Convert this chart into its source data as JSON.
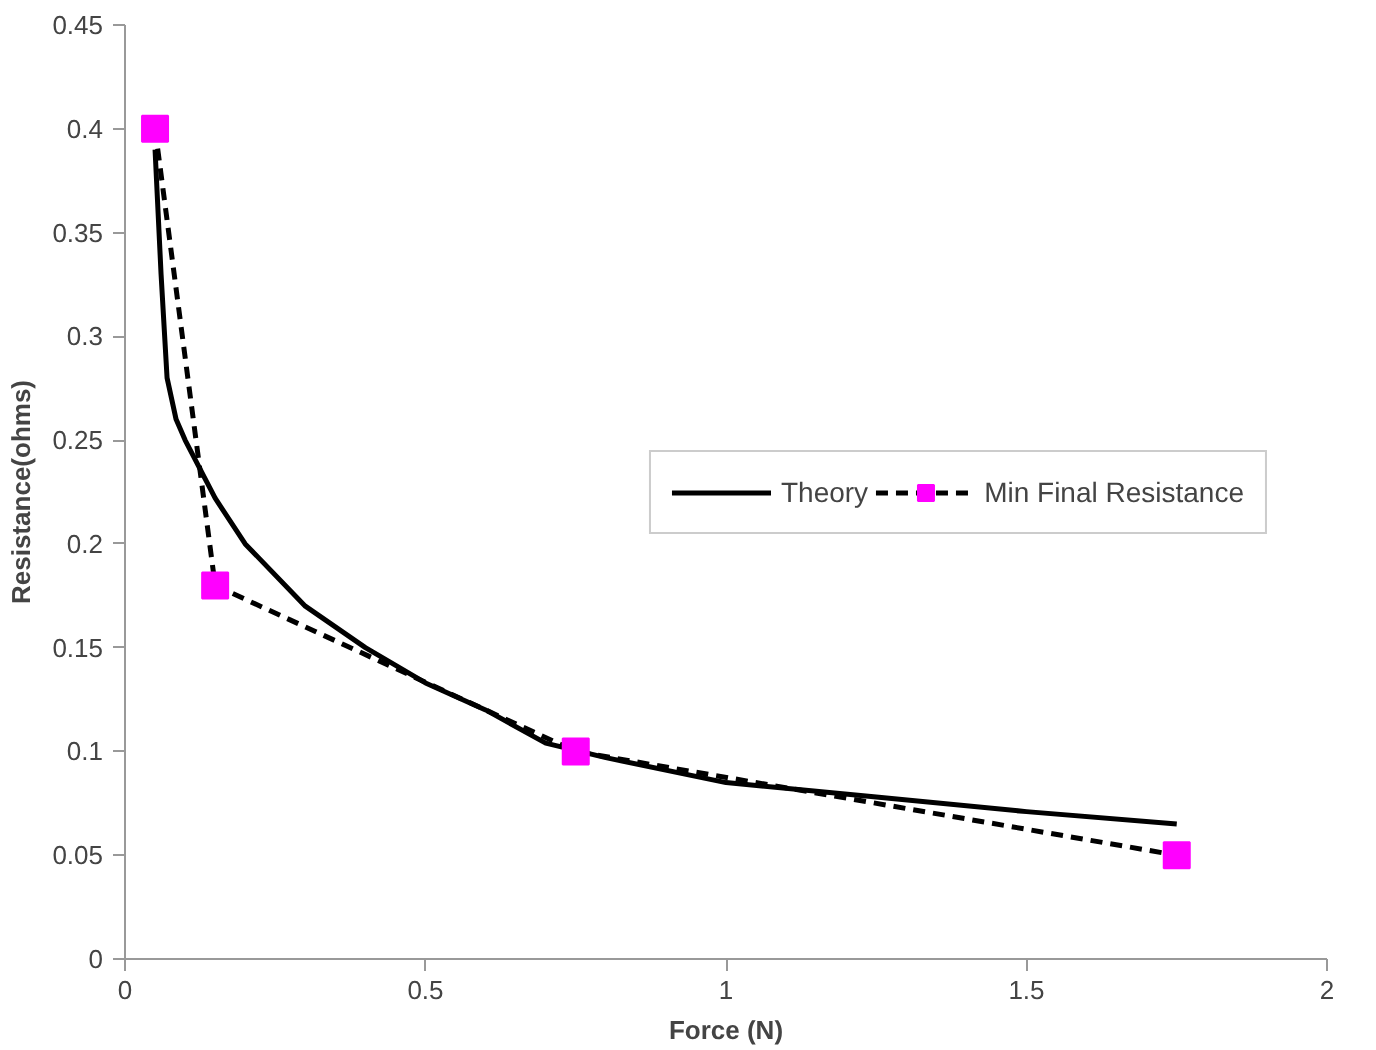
{
  "chart_data": {
    "type": "line",
    "xlabel": "Force (N)",
    "ylabel": "Resistance(ohms)",
    "xlim": [
      0,
      2
    ],
    "xticks": [
      0,
      0.5,
      1,
      1.5,
      2
    ],
    "ylim": [
      0,
      0.45
    ],
    "yticks": [
      0,
      0.05,
      0.1,
      0.15,
      0.2,
      0.25,
      0.3,
      0.35,
      0.4,
      0.45
    ],
    "grid": false,
    "legend": "right",
    "series": [
      {
        "name": "Theory",
        "color": "#000000",
        "line_style": "solid",
        "marker": "none",
        "x": [
          0.05,
          0.06,
          0.07,
          0.085,
          0.1,
          0.15,
          0.2,
          0.3,
          0.4,
          0.5,
          0.6,
          0.7,
          0.8,
          1.0,
          1.25,
          1.5,
          1.75
        ],
        "values": [
          0.39,
          0.33,
          0.28,
          0.26,
          0.25,
          0.222,
          0.2,
          0.17,
          0.15,
          0.133,
          0.12,
          0.104,
          0.097,
          0.085,
          0.078,
          0.071,
          0.065
        ]
      },
      {
        "name": "Min Final Resistance",
        "color": "#000000",
        "colors": [
          "#ff00ff",
          "#ff00ff",
          "#ff00ff",
          "#ff00ff"
        ],
        "line_style": "dashed",
        "marker": "square",
        "x": [
          0.05,
          0.15,
          0.75,
          1.75
        ],
        "values": [
          0.4,
          0.18,
          0.1,
          0.05
        ]
      }
    ]
  }
}
